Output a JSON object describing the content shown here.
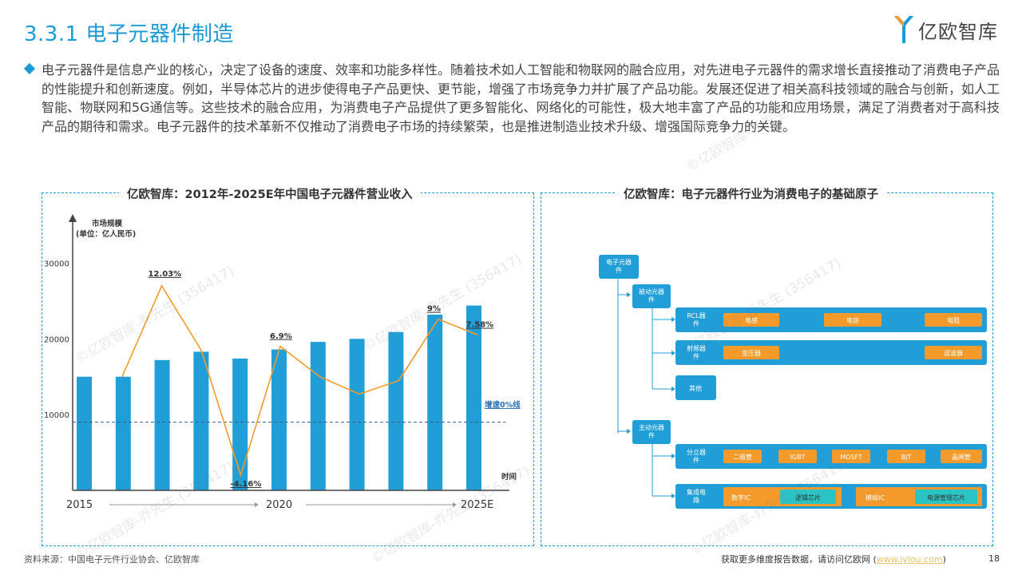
{
  "page": {
    "title": "3.3.1 电子元器件制造",
    "logo_text": "亿欧智库",
    "intro": "电子元器件是信息产业的核心，决定了设备的速度、效率和功能多样性。随着技术如人工智能和物联网的融合应用，对先进电子元器件的需求增长直接推动了消费电子产品的性能提升和创新速度。例如，半导体芯片的进步使得电子产品更快、更节能，增强了市场竞争力并扩展了产品功能。发展还促进了相关高科技领域的融合与创新，如人工智能、物联网和5G通信等。这些技术的融合应用，为消费电子产品提供了更多智能化、网络化的可能性，极大地丰富了产品的功能和应用场景，满足了消费者对于高科技产品的期待和需求。电子元器件的技术革新不仅推动了消费电子市场的持续繁荣，也是推进制造业技术升级、增强国际竞争力的关键。",
    "watermark": "©亿欧智库-乔先生 (356417)",
    "source": "资料来源：中国电子元件行业协会、亿欧智库",
    "footer_text": "获取更多维度报告数据，请访问亿欧网 (",
    "footer_link": "www.iyiou.com",
    "footer_close": ")",
    "page_number": "18",
    "accent_color": "#1a9ad6"
  },
  "chart_data": {
    "type": "bar",
    "title": "亿欧智库：2012年-2025E年中国电子元器件营业收入",
    "ylabel": "市场规模",
    "ylabel_unit": "(单位：亿人民币)",
    "xlabel": "时间",
    "ylim": [
      0,
      35000
    ],
    "yticks": [
      "10000",
      "20000",
      "30000"
    ],
    "x_start_label": "2015",
    "x_mid_label": "2020",
    "x_end_label": "2025E",
    "bar_values": [
      15000,
      15000,
      17200,
      18300,
      17400,
      18600,
      19600,
      20000,
      20900,
      23200,
      24400
    ],
    "growth_line": [
      15000,
      27000,
      18500,
      2000,
      19000,
      15000,
      12700,
      14500,
      22600,
      20500
    ],
    "growth_labels": [
      {
        "text": "12.03%",
        "index": 1
      },
      {
        "text": "-4.16%",
        "index": 3
      },
      {
        "text": "6.9%",
        "index": 4
      },
      {
        "text": "9%",
        "index": 8
      },
      {
        "text": "7.58%",
        "index": 9
      }
    ],
    "zero_growth_line_value": 9000,
    "zero_growth_label": "增速0%线",
    "bar_color": "#1f9ed8",
    "line_color": "#f39a2b"
  },
  "diagram": {
    "title": "亿欧智库：电子元器件行业为消费电子的基础原子",
    "root": "电子元器件",
    "passive": "被动元器件",
    "active": "主动元器件",
    "rcl": "RCL器件",
    "rcl_items": [
      "电感",
      "电容",
      "电阻"
    ],
    "rf": "射频器件",
    "rf_items": [
      "变压器",
      "滤波器"
    ],
    "other": "其他",
    "discrete": "分立器件",
    "discrete_items": [
      "二极管",
      "IGBT",
      "MOSFT",
      "BJT",
      "晶闸管"
    ],
    "ic": "集成电路",
    "digital_ic": "数字IC",
    "logic_chip": "逻辑芯片",
    "analog_ic": "模拟IC",
    "power_chip": "电源管理芯片",
    "node_color": "#1f9ed8",
    "item_color": "#f39a2b",
    "sub_item_color": "#2bc4c4"
  }
}
